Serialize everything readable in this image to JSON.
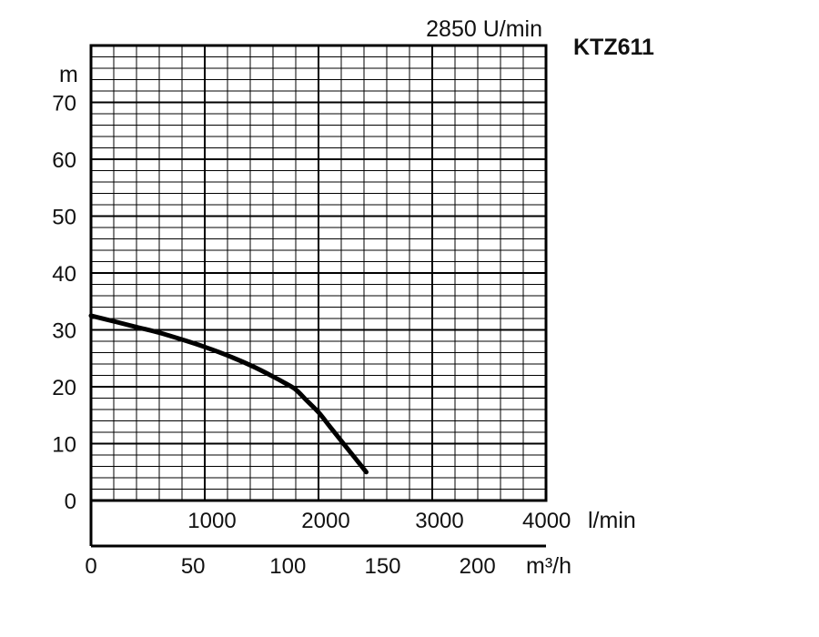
{
  "chart_data": {
    "type": "line",
    "title": "KTZ611",
    "subtitle": "2850 U/min",
    "ylabel": "m",
    "x_unit_primary": "l/min",
    "x_unit_secondary": "m³/h",
    "xlim": [
      0,
      4000
    ],
    "ylim": [
      0,
      80
    ],
    "y_ticks": [
      "0",
      "10",
      "20",
      "30",
      "40",
      "50",
      "60",
      "70"
    ],
    "x_ticks_primary": [
      "1000",
      "2000",
      "3000",
      "4000"
    ],
    "x_ticks_secondary": [
      "0",
      "50",
      "100",
      "150",
      "200"
    ],
    "grid": true,
    "series": [
      {
        "x": [
          0,
          200,
          400,
          600,
          800,
          1000,
          1200,
          1400,
          1600,
          1700,
          1800,
          1900,
          2000,
          2100,
          2200,
          2300,
          2420
        ],
        "y": [
          32.5,
          31.5,
          30.5,
          29.5,
          28.3,
          27.0,
          25.5,
          23.8,
          21.8,
          20.7,
          19.5,
          17.5,
          15.5,
          13.0,
          10.5,
          8.0,
          5.0
        ]
      }
    ]
  }
}
